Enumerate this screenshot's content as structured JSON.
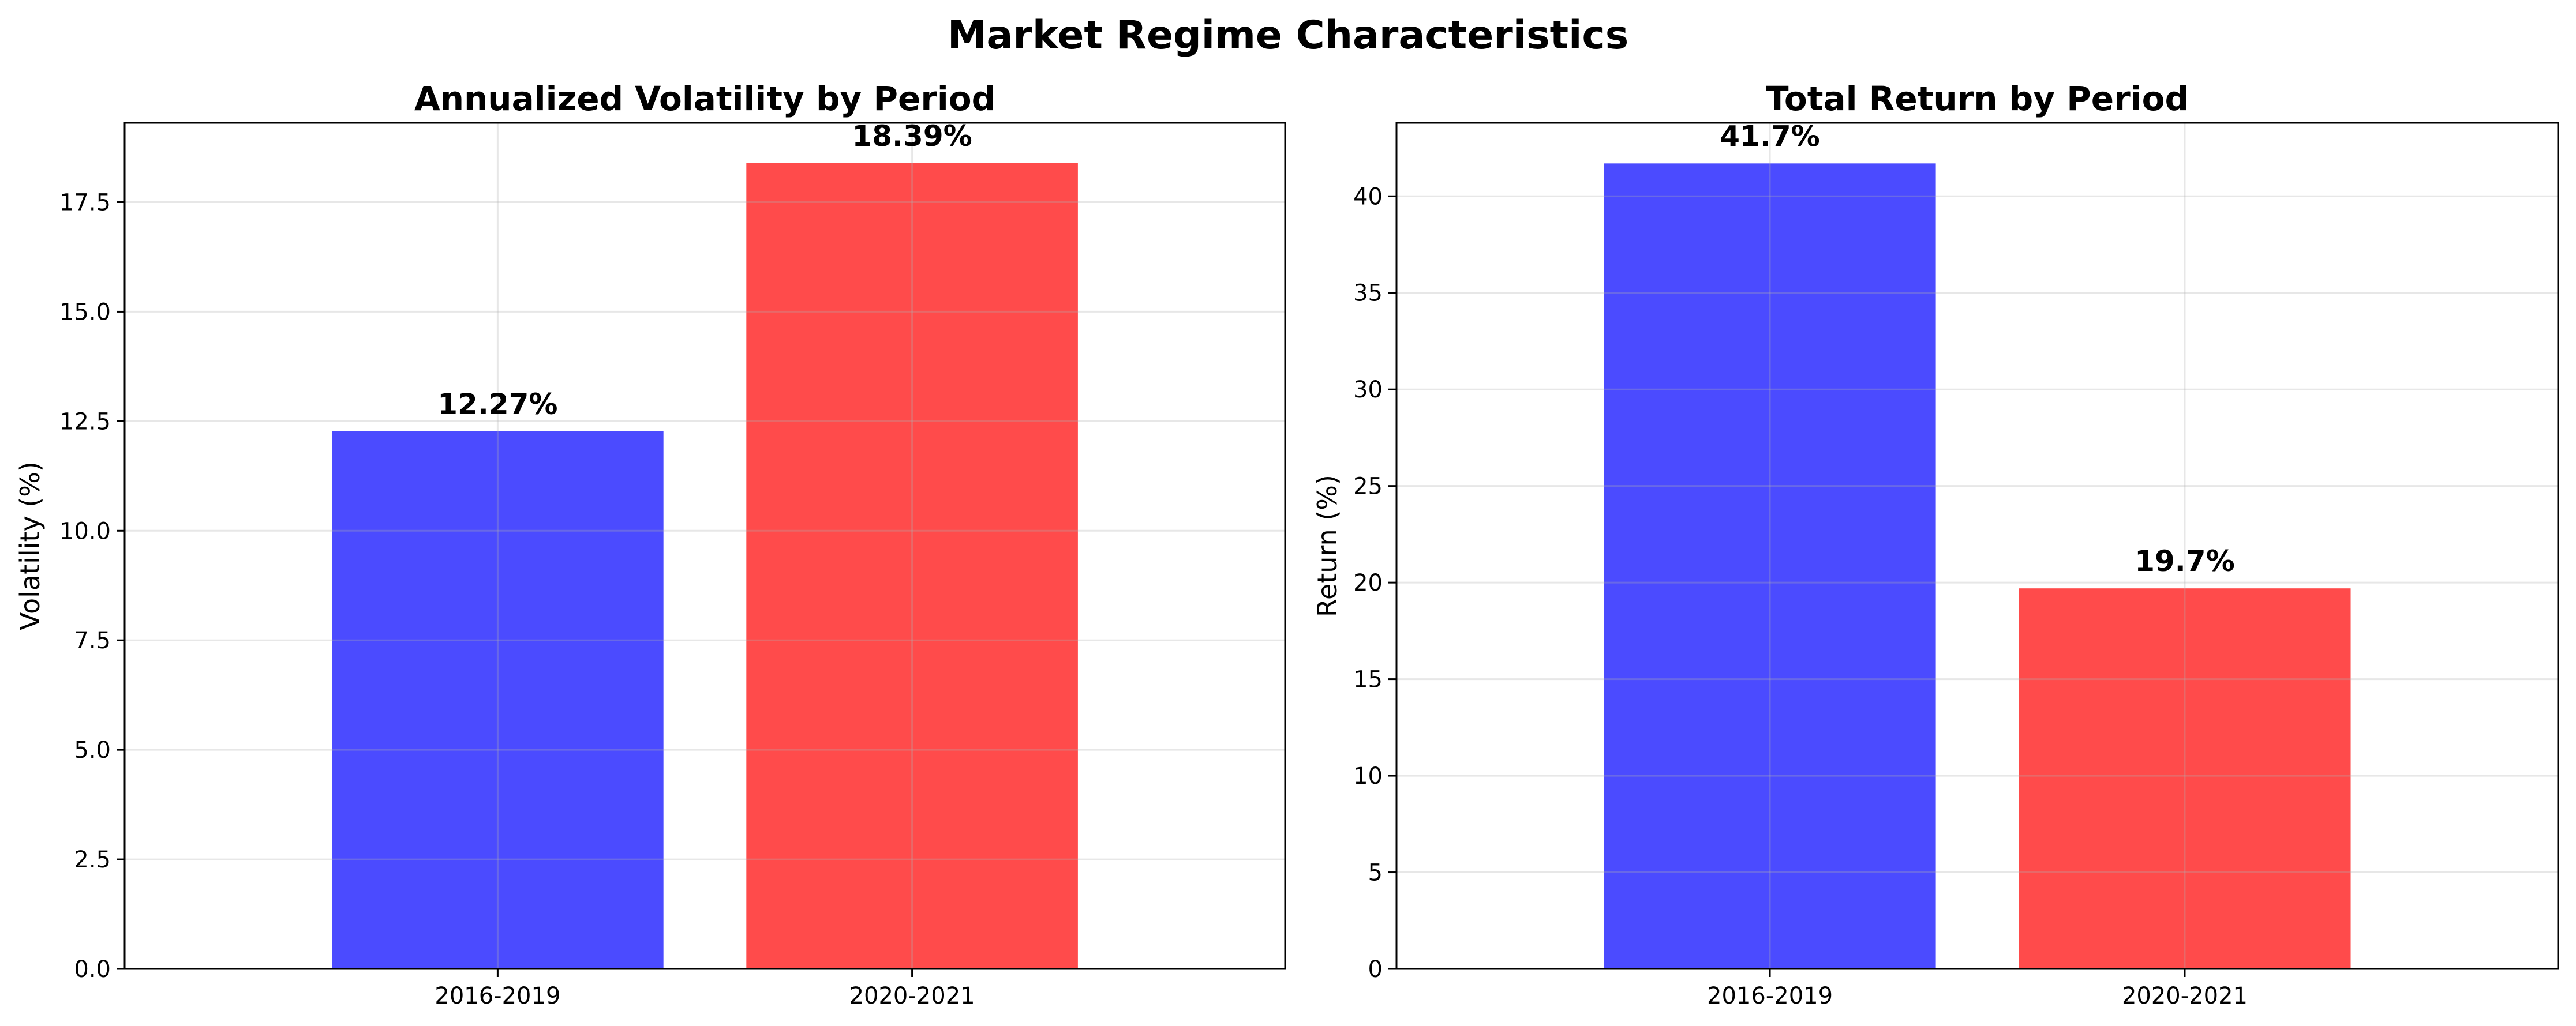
{
  "figure": {
    "title": "Market Regime Characteristics"
  },
  "colors": {
    "bar_2016_2019": "#4b4bff",
    "bar_2020_2021": "#ff4b4b"
  },
  "chart_data": [
    {
      "type": "bar",
      "title": "Annualized Volatility by Period",
      "xlabel": "",
      "ylabel": "Volatility (%)",
      "categories": [
        "2016-2019",
        "2020-2021"
      ],
      "values": [
        12.27,
        18.39
      ],
      "value_labels": [
        "12.27%",
        "18.39%"
      ],
      "colors": [
        "#4b4bff",
        "#ff4b4b"
      ],
      "ylim": [
        0,
        19.31
      ],
      "yticks": [
        0,
        2.5,
        5,
        7.5,
        10,
        12.5,
        15,
        17.5
      ],
      "ytick_labels": [
        "0.0",
        "2.5",
        "5.0",
        "7.5",
        "10.0",
        "12.5",
        "15.0",
        "17.5"
      ],
      "grid": true
    },
    {
      "type": "bar",
      "title": "Total Return by Period",
      "xlabel": "",
      "ylabel": "Return (%)",
      "categories": [
        "2016-2019",
        "2020-2021"
      ],
      "values": [
        41.7,
        19.7
      ],
      "value_labels": [
        "41.7%",
        "19.7%"
      ],
      "colors": [
        "#4b4bff",
        "#ff4b4b"
      ],
      "ylim": [
        0,
        43.8
      ],
      "yticks": [
        0,
        5,
        10,
        15,
        20,
        25,
        30,
        35,
        40
      ],
      "ytick_labels": [
        "0",
        "5",
        "10",
        "15",
        "20",
        "25",
        "30",
        "35",
        "40"
      ],
      "grid": true
    }
  ]
}
